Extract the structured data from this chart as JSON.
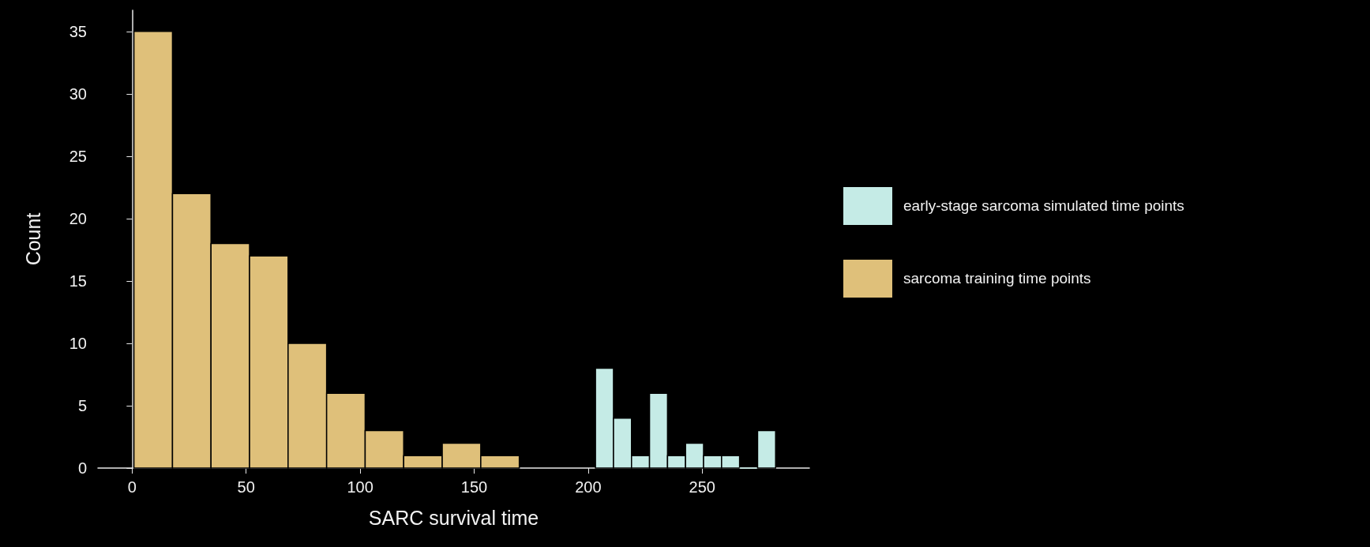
{
  "chart_data": {
    "type": "histogram",
    "xlabel": "SARC survival time",
    "ylabel": "Count",
    "bins": [
      0.8,
      17.7,
      34.6,
      51.5,
      68.4,
      85.3,
      102.2,
      119.1,
      136.0,
      152.9,
      169.8,
      203.2,
      211.1,
      219.0,
      226.9,
      234.8,
      242.7,
      250.6,
      258.5,
      266.4,
      274.3,
      282.2
    ],
    "series": [
      {
        "name": "early-stage sarcoma simulated time points",
        "color": "#c5ebe6",
        "values": [
          null,
          null,
          null,
          null,
          null,
          null,
          null,
          null,
          null,
          null,
          null,
          8,
          4,
          1,
          6,
          1,
          2,
          1,
          1,
          0,
          3
        ]
      },
      {
        "name": "sarcoma training time points",
        "color": "#dfc07a",
        "values": [
          35,
          22,
          18,
          17,
          10,
          6,
          3,
          1,
          2,
          1,
          null,
          null,
          null,
          null,
          null,
          null,
          null,
          null,
          null,
          null,
          null
        ]
      }
    ],
    "xlim": [
      -15,
      297
    ],
    "xticks": [
      0,
      50,
      100,
      150,
      200,
      250
    ],
    "ylim": [
      0,
      36.7
    ],
    "yticks": [
      0,
      5,
      10,
      15,
      20,
      25,
      30,
      35
    ],
    "legend": "right"
  }
}
